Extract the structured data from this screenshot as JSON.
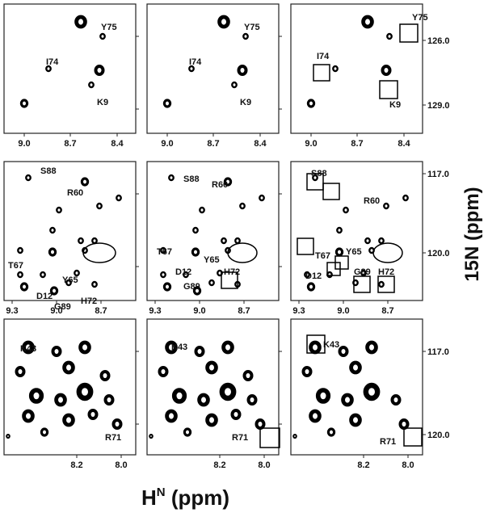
{
  "panels": [
    {
      "x_ticks": [
        "9.0",
        "8.7",
        "8.4"
      ],
      "labels": [
        "Y75",
        "I74",
        "K9"
      ]
    },
    {
      "x_ticks": [
        "9.0",
        "8.7",
        "8.4"
      ],
      "labels": [
        "Y75",
        "I74",
        "K9"
      ]
    },
    {
      "x_ticks": [
        "9.0",
        "8.7",
        "8.4"
      ],
      "y_ticks": [
        "126.0",
        "129.0"
      ],
      "labels": [
        "Y75",
        "I74",
        "K9"
      ]
    },
    {
      "x_ticks": [
        "9.3",
        "9.0",
        "8.7"
      ],
      "labels": [
        "S88",
        "R60",
        "T67",
        "Y65",
        "D12",
        "G89",
        "H72"
      ]
    },
    {
      "x_ticks": [
        "9.3",
        "9.0",
        "8.7"
      ],
      "labels": [
        "S88",
        "R60",
        "T67",
        "Y65",
        "D12",
        "G89",
        "H72"
      ]
    },
    {
      "x_ticks": [
        "9.3",
        "9.0",
        "8.7"
      ],
      "y_ticks": [
        "117.0",
        "120.0"
      ],
      "labels": [
        "S88",
        "R60",
        "T67",
        "Y65",
        "D12",
        "G89",
        "H72"
      ]
    },
    {
      "x_ticks": [
        "8.2",
        "8.0"
      ],
      "labels": [
        "K43",
        "R71"
      ]
    },
    {
      "x_ticks": [
        "8.2",
        "8.0"
      ],
      "labels": [
        "K43",
        "R71"
      ]
    },
    {
      "x_ticks": [
        "8.2",
        "8.0"
      ],
      "y_ticks": [
        "117.0",
        "120.0"
      ],
      "labels": [
        "K43",
        "R71"
      ]
    }
  ],
  "x_axis_label": {
    "main": "H",
    "sup": "N",
    "unit": " (ppm)"
  },
  "y_axis_label": "15N (ppm)"
}
